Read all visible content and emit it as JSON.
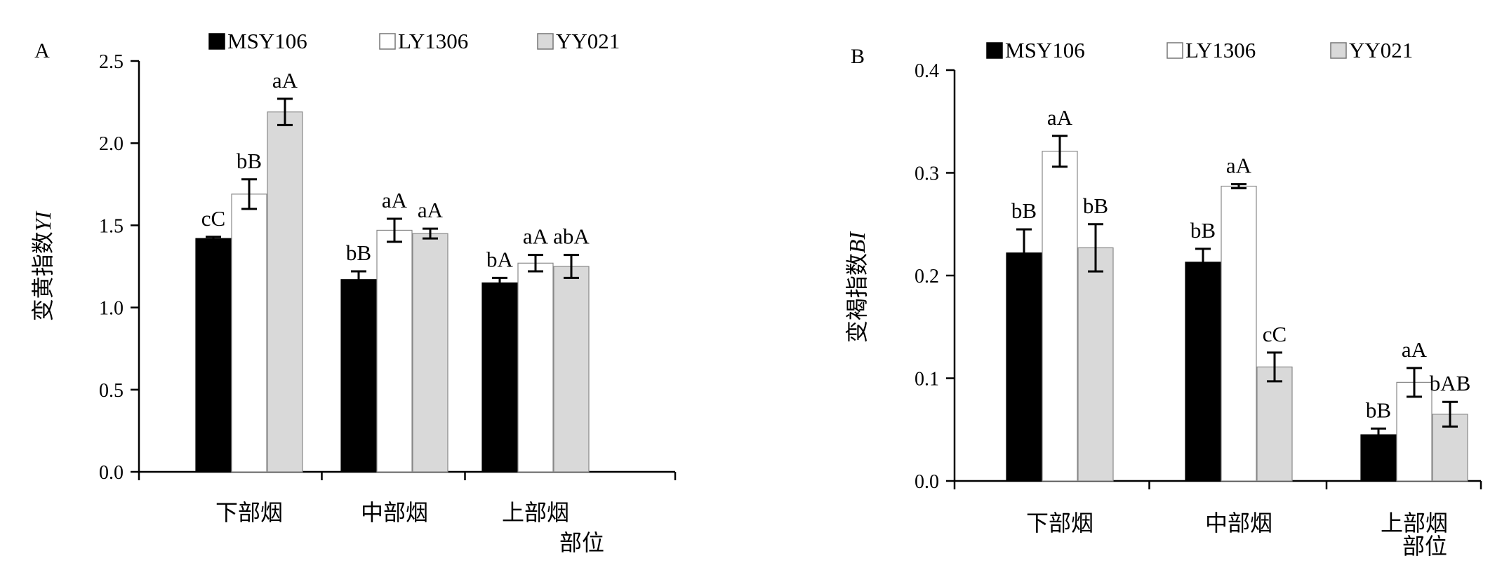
{
  "chart_data": [
    {
      "type": "bar",
      "panel_label": "A",
      "ylabel": "变黄指数",
      "ylabel_italic": "YI",
      "xlabel": "部位",
      "ylim": [
        0,
        2.5
      ],
      "yticks": [
        "0.0",
        "0.5",
        "1.0",
        "1.5",
        "2.0",
        "2.5"
      ],
      "categories": [
        "下部烟",
        "中部烟",
        "上部烟"
      ],
      "series": [
        {
          "name": "MSY106",
          "color": "#000000",
          "values": [
            1.42,
            1.17,
            1.15
          ],
          "errors": [
            0.01,
            0.05,
            0.03
          ],
          "labels": [
            "cC",
            "bB",
            "bA"
          ]
        },
        {
          "name": "LY1306",
          "color": "#ffffff",
          "values": [
            1.69,
            1.47,
            1.27
          ],
          "errors": [
            0.09,
            0.07,
            0.05
          ],
          "labels": [
            "bB",
            "aA",
            "aA"
          ]
        },
        {
          "name": "YY021",
          "color": "#d9d9d9",
          "values": [
            2.19,
            1.45,
            1.25
          ],
          "errors": [
            0.08,
            0.03,
            0.07
          ],
          "labels": [
            "aA",
            "aA",
            "abA"
          ]
        }
      ]
    },
    {
      "type": "bar",
      "panel_label": "B",
      "ylabel": "变褐指数",
      "ylabel_italic": "BI",
      "xlabel": "部位",
      "ylim": [
        0,
        0.4
      ],
      "yticks": [
        "0.0",
        "0.1",
        "0.2",
        "0.3",
        "0.4"
      ],
      "categories": [
        "下部烟",
        "中部烟",
        "上部烟"
      ],
      "series": [
        {
          "name": "MSY106",
          "color": "#000000",
          "values": [
            0.222,
            0.213,
            0.045
          ],
          "errors": [
            0.023,
            0.013,
            0.006
          ],
          "labels": [
            "bB",
            "bB",
            "bB"
          ]
        },
        {
          "name": "LY1306",
          "color": "#ffffff",
          "values": [
            0.321,
            0.287,
            0.096
          ],
          "errors": [
            0.015,
            0.002,
            0.014
          ],
          "labels": [
            "aA",
            "aA",
            "aA"
          ]
        },
        {
          "name": "YY021",
          "color": "#d9d9d9",
          "values": [
            0.227,
            0.111,
            0.065
          ],
          "errors": [
            0.023,
            0.014,
            0.012
          ],
          "labels": [
            "bB",
            "cC",
            "bAB"
          ]
        }
      ]
    }
  ]
}
